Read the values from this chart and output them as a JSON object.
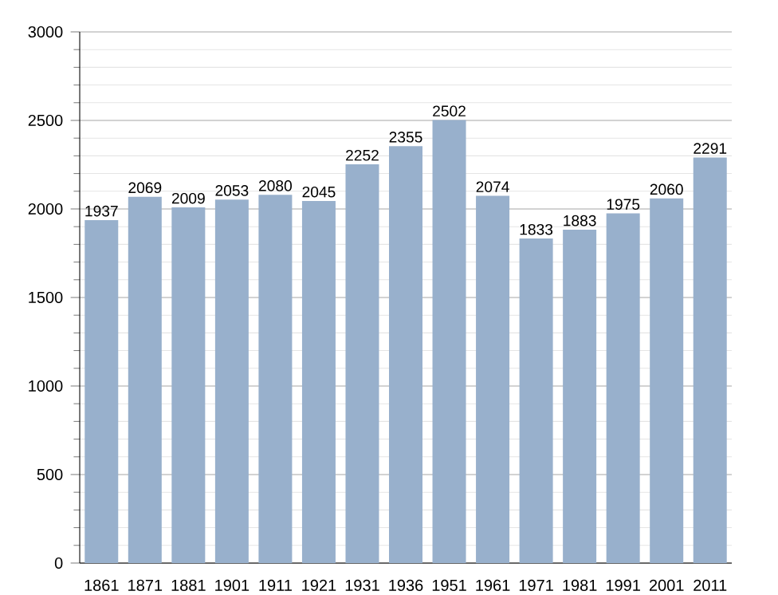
{
  "chart_data": {
    "type": "bar",
    "categories": [
      "1861",
      "1871",
      "1881",
      "1901",
      "1911",
      "1921",
      "1931",
      "1936",
      "1951",
      "1961",
      "1971",
      "1981",
      "1991",
      "2001",
      "2011"
    ],
    "values": [
      1937,
      2069,
      2009,
      2053,
      2080,
      2045,
      2252,
      2355,
      2502,
      2074,
      1833,
      1883,
      1975,
      2060,
      2291
    ],
    "color": "#98b0cc",
    "ylim": [
      0,
      3000
    ],
    "yticks": [
      0,
      500,
      1000,
      1500,
      2000,
      2500,
      3000
    ],
    "grid": true,
    "data_labels": true
  }
}
